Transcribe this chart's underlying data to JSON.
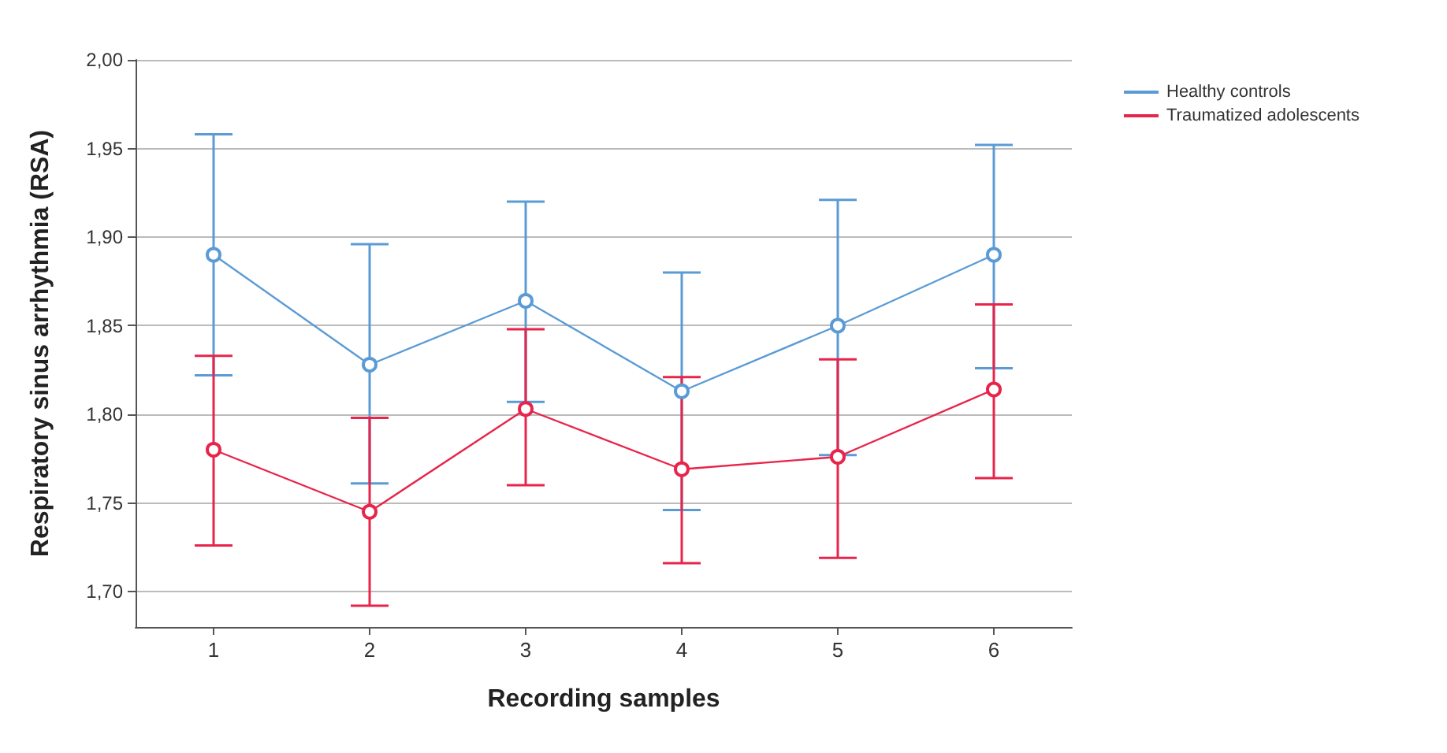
{
  "chart_data": {
    "type": "line",
    "xlabel": "Recording samples",
    "ylabel": "Respiratory sinus arrhythmia (RSA)",
    "categories": [
      "1",
      "2",
      "3",
      "4",
      "5",
      "6"
    ],
    "series": [
      {
        "name": "Healthy controls",
        "color": "#5b9bd5",
        "values": [
          1.89,
          1.828,
          1.864,
          1.813,
          1.85,
          1.89
        ],
        "errors": [
          [
            1.822,
            1.958
          ],
          [
            1.761,
            1.896
          ],
          [
            1.807,
            1.92
          ],
          [
            1.746,
            1.88
          ],
          [
            1.777,
            1.921
          ],
          [
            1.826,
            1.952
          ]
        ]
      },
      {
        "name": "Traumatized adolescents",
        "color": "#e8244a",
        "values": [
          1.78,
          1.745,
          1.803,
          1.769,
          1.776,
          1.814
        ],
        "errors": [
          [
            1.726,
            1.833
          ],
          [
            1.692,
            1.798
          ],
          [
            1.76,
            1.848
          ],
          [
            1.716,
            1.821
          ],
          [
            1.719,
            1.831
          ],
          [
            1.764,
            1.862
          ]
        ]
      }
    ],
    "ylim": [
      1.68,
      2.0
    ],
    "yticks": [
      {
        "value": 1.7,
        "label": "1,70"
      },
      {
        "value": 1.75,
        "label": "1,75"
      },
      {
        "value": 1.8,
        "label": "1,80"
      },
      {
        "value": 1.85,
        "label": "1,85"
      },
      {
        "value": 1.9,
        "label": "1,90"
      },
      {
        "value": 1.95,
        "label": "1,95"
      },
      {
        "value": 2.0,
        "label": "2,00"
      }
    ],
    "grid": "y",
    "legend": "top right",
    "marker": "circle",
    "line_style": "solid"
  }
}
